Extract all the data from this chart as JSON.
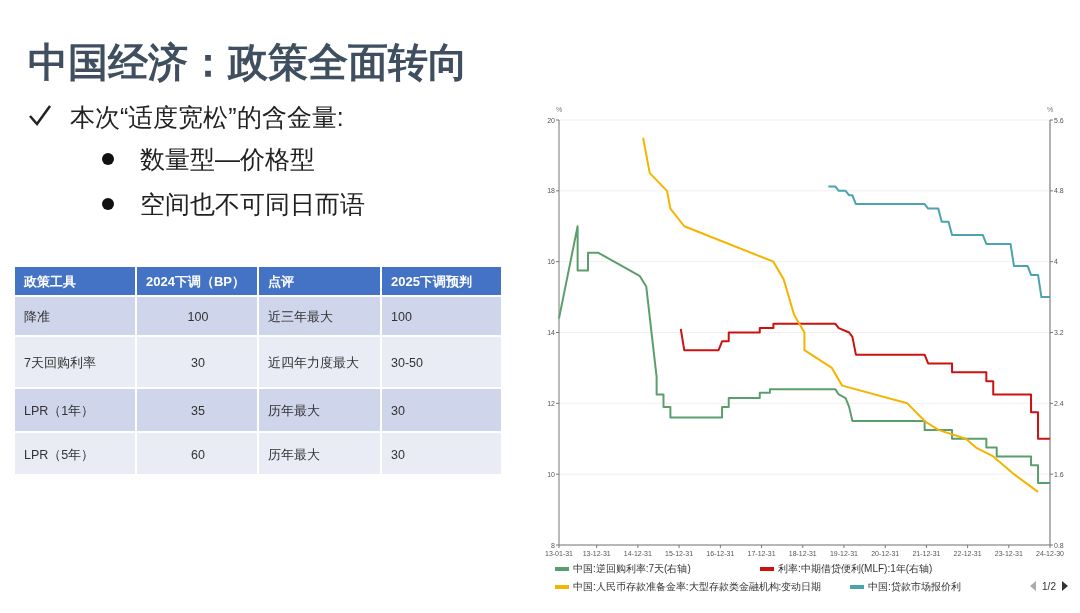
{
  "chart_data": [
    {
      "type": "other",
      "title": "中国经济：政策全面转向",
      "annotations": [
        "本次“适度宽松”的含金量:",
        "数量型—价格型",
        "空间也不可同日而语",
        "政策工具",
        "2024下调（BP）",
        "点评",
        "2025下调预判",
        "降准",
        "100",
        "近三年最大",
        "100",
        "7天回购利率",
        "30",
        "近四年力度最大",
        "30-50",
        "LPR（1年）",
        "35",
        "历年最大",
        "30",
        "LPR（5年）",
        "60",
        "历年最大",
        "30"
      ]
    },
    {
      "type": "line",
      "ylabel": "%",
      "y2label": "%",
      "xlim": [
        "2013-01-31",
        "2024-12-30"
      ],
      "ylim": [
        8,
        20
      ],
      "y2lim": [
        0.8,
        5.6
      ],
      "xticks": [
        {
          "value": "2013-01-31",
          "label": "13-01-31"
        },
        {
          "value": "2013-12-31",
          "label": "13-12-31"
        },
        {
          "value": "2014-12-31",
          "label": "14-12-31"
        },
        {
          "value": "2015-12-31",
          "label": "15-12-31"
        },
        {
          "value": "2016-12-31",
          "label": "16-12-31"
        },
        {
          "value": "2017-12-31",
          "label": "17-12-31"
        },
        {
          "value": "2018-12-31",
          "label": "18-12-31"
        },
        {
          "value": "2019-12-31",
          "label": "19-12-31"
        },
        {
          "value": "2020-12-31",
          "label": "20-12-31"
        },
        {
          "value": "2021-12-31",
          "label": "21-12-31"
        },
        {
          "value": "2022-12-31",
          "label": "22-12-31"
        },
        {
          "value": "2023-12-31",
          "label": "23-12-31"
        },
        {
          "value": "2024-12-30",
          "label": "24-12-30"
        }
      ],
      "yticks": [
        8,
        10,
        12,
        14,
        16,
        18,
        20
      ],
      "y2ticks": [
        0.8,
        1.6,
        2.4,
        3.2,
        4,
        4.8,
        5.6
      ],
      "grid": "y",
      "legend": "bottom",
      "annotations": [
        "1/2"
      ],
      "series": [
        {
          "name": "中国:逆回购利率:7天(右轴)",
          "color": "#5b9e6e",
          "axis": "y2",
          "x": [
            "2013-01-31",
            "2013-07",
            "2013-07",
            "2013-10",
            "2013-10",
            "2014-01",
            "2015-01",
            "2015-03",
            "2015-06",
            "2015-06",
            "2015-08",
            "2015-08",
            "2015-10",
            "2015-10",
            "2017-01",
            "2017-01",
            "2017-03",
            "2017-03",
            "2017-12",
            "2017-12",
            "2018-03",
            "2018-03",
            "2019-10",
            "2019-11",
            "2020-01",
            "2020-02",
            "2020-03",
            "2021-12",
            "2021-12",
            "2022-08",
            "2022-08",
            "2023-06",
            "2023-06",
            "2023-09",
            "2023-09",
            "2024-07",
            "2024-07",
            "2024-09",
            "2024-09",
            "2024-12-30"
          ],
          "values": [
            3.36,
            4.4,
            3.9,
            3.9,
            4.1,
            4.1,
            3.84,
            3.72,
            2.7,
            2.5,
            2.5,
            2.36,
            2.36,
            2.24,
            2.24,
            2.36,
            2.36,
            2.46,
            2.46,
            2.52,
            2.52,
            2.56,
            2.56,
            2.5,
            2.46,
            2.36,
            2.2,
            2.2,
            2.1,
            2.1,
            2.0,
            2.0,
            1.9,
            1.9,
            1.8,
            1.8,
            1.7,
            1.7,
            1.5,
            1.5
          ]
        },
        {
          "name": "利率:中期借贷便利(MLF):1年(右轴)",
          "color": "#cc1111",
          "axis": "y2",
          "x": [
            "2016-01",
            "2016-02",
            "2016-12",
            "2017-01",
            "2017-03",
            "2017-03",
            "2017-12",
            "2017-12",
            "2018-04",
            "2018-04",
            "2019-10",
            "2019-11",
            "2020-02",
            "2020-03",
            "2020-04",
            "2021-12",
            "2022-01",
            "2022-08",
            "2022-08",
            "2023-06",
            "2023-06",
            "2023-08",
            "2023-08",
            "2024-07",
            "2024-07",
            "2024-09",
            "2024-09",
            "2024-12-30"
          ],
          "values": [
            3.24,
            3.0,
            3.0,
            3.1,
            3.1,
            3.2,
            3.2,
            3.25,
            3.25,
            3.3,
            3.3,
            3.25,
            3.2,
            3.15,
            2.95,
            2.95,
            2.85,
            2.85,
            2.75,
            2.75,
            2.65,
            2.65,
            2.5,
            2.5,
            2.3,
            2.3,
            2.0,
            2.0
          ]
        },
        {
          "name": "中国:人民币存款准备金率:大型存款类金融机构:变动日期",
          "color": "#f5b400",
          "x": [
            "2015-02",
            "2015-04",
            "2015-09",
            "2015-10",
            "2016-02",
            "2018-04",
            "2018-07",
            "2018-10",
            "2019-01",
            "2019-01",
            "2019-09",
            "2019-12",
            "2021-07",
            "2021-12",
            "2022-04",
            "2022-12",
            "2023-03",
            "2023-08",
            "2024-02",
            "2024-09"
          ],
          "values": [
            19.5,
            18.5,
            18.0,
            17.5,
            17.0,
            16.0,
            15.5,
            14.5,
            14.0,
            13.5,
            13.0,
            12.5,
            12.0,
            11.5,
            11.25,
            11.0,
            10.75,
            10.5,
            10.0,
            9.5
          ]
        },
        {
          "name": "中国:贷款市场报价利",
          "color": "#4ba3b0",
          "axis": "y2",
          "x": [
            "2019-08",
            "2019-10",
            "2019-11",
            "2020-01",
            "2020-02",
            "2020-03",
            "2020-04",
            "2021-12",
            "2022-01",
            "2022-04",
            "2022-05",
            "2022-07",
            "2022-08",
            "2023-05",
            "2023-06",
            "2024-01",
            "2024-02",
            "2024-06",
            "2024-07",
            "2024-09",
            "2024-10",
            "2024-12-30"
          ],
          "values": [
            4.85,
            4.85,
            4.8,
            4.8,
            4.75,
            4.75,
            4.65,
            4.65,
            4.6,
            4.6,
            4.45,
            4.45,
            4.3,
            4.3,
            4.2,
            4.2,
            3.95,
            3.95,
            3.85,
            3.85,
            3.6,
            3.6
          ]
        }
      ]
    }
  ]
}
